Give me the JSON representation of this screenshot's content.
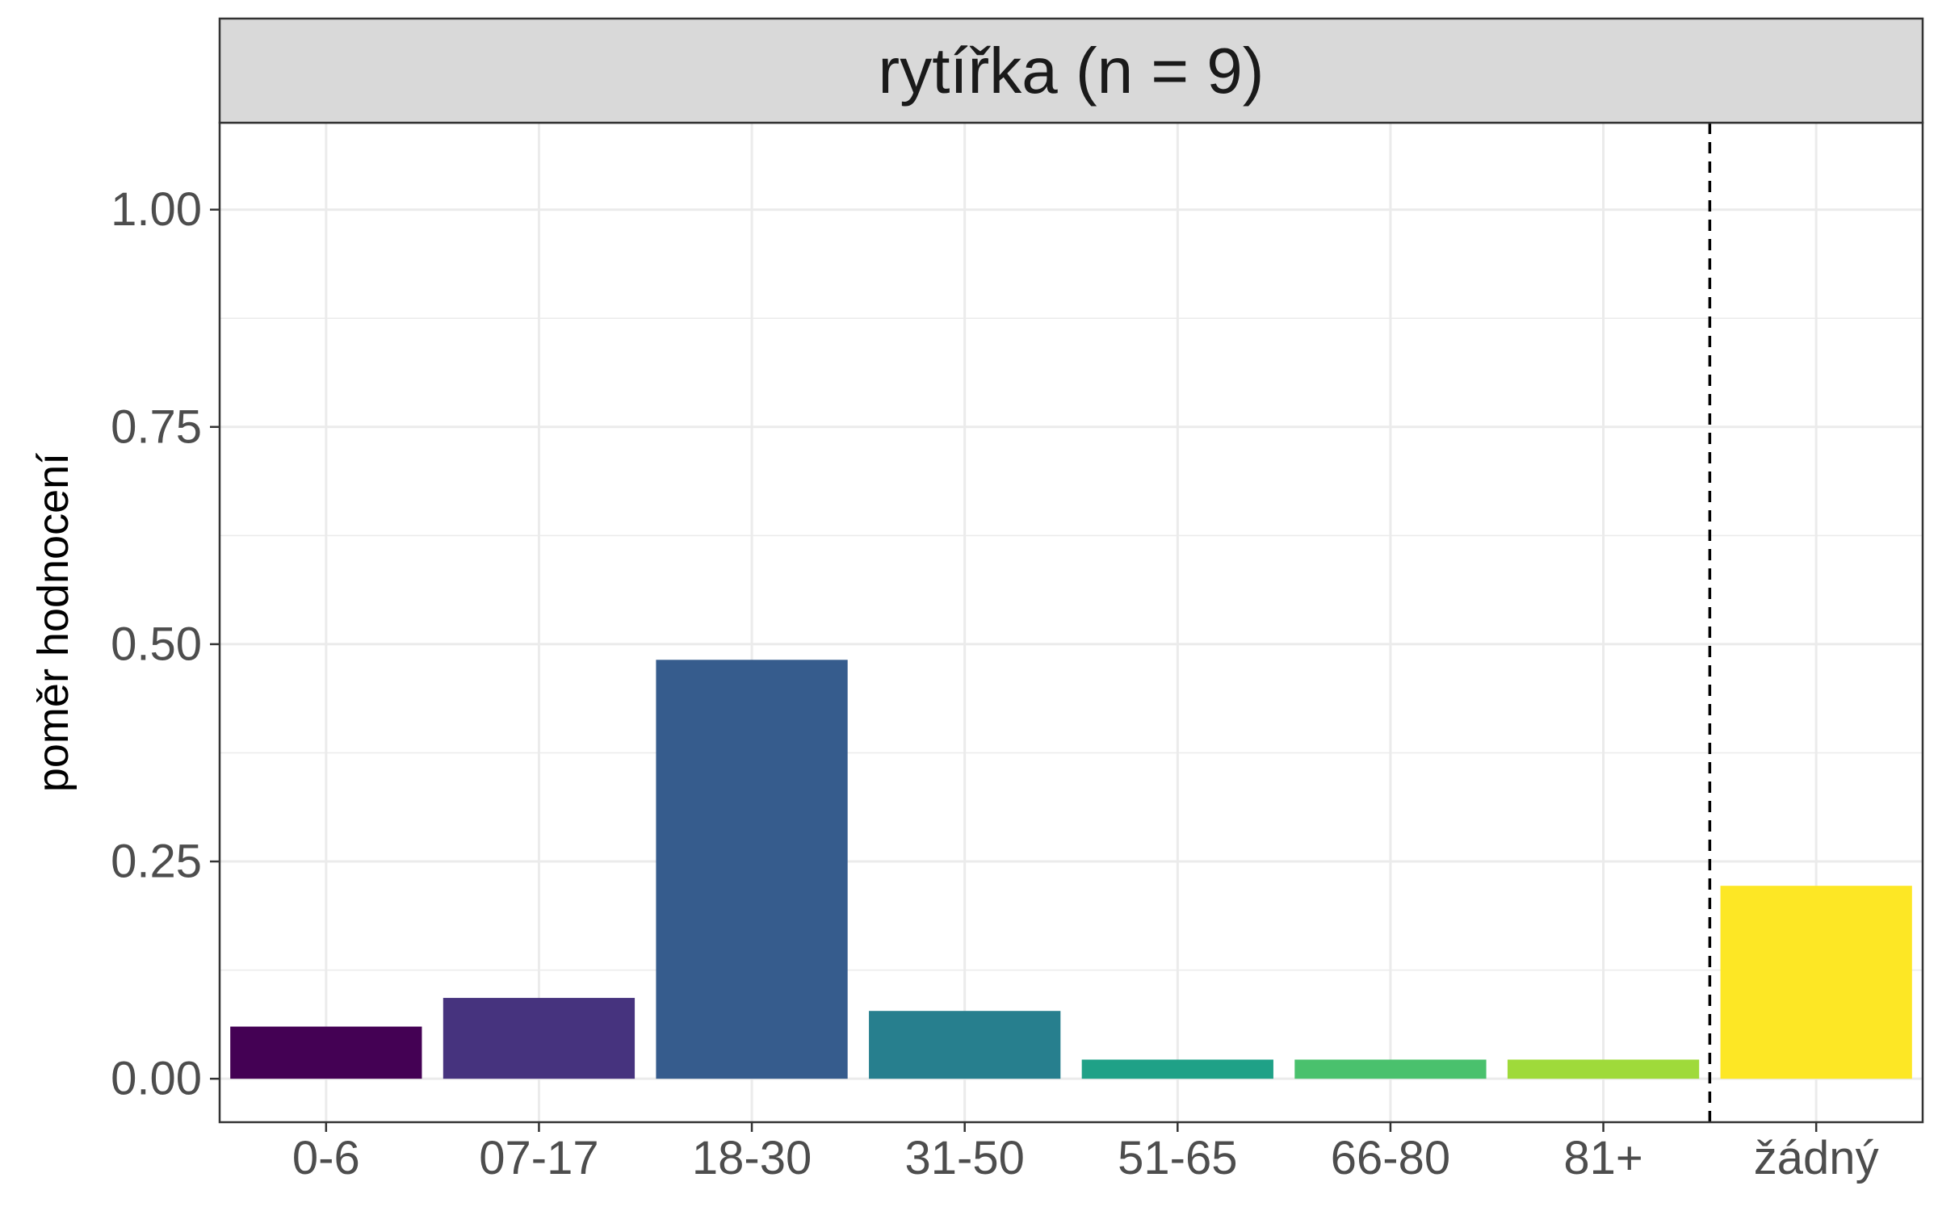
{
  "chart_data": {
    "type": "bar",
    "facet_title": "rytířka (n = 9)",
    "xlabel": "",
    "ylabel": "poměr hodnocení",
    "ylim": [
      -0.05,
      1.1
    ],
    "y_ticks": [
      "0.00",
      "0.25",
      "0.50",
      "0.75",
      "1.00"
    ],
    "categories": [
      "0-6",
      "07-17",
      "18-30",
      "31-50",
      "51-65",
      "66-80",
      "81+",
      "žádný"
    ],
    "values": [
      0.06,
      0.093,
      0.482,
      0.078,
      0.022,
      0.022,
      0.022,
      0.222
    ],
    "colors": [
      "#440154",
      "#46337E",
      "#365C8D",
      "#277F8E",
      "#1FA187",
      "#4AC16D",
      "#9FDA3A",
      "#FDE725"
    ],
    "dashed_line_after_category": "81+",
    "grid": true,
    "legend": "none"
  }
}
